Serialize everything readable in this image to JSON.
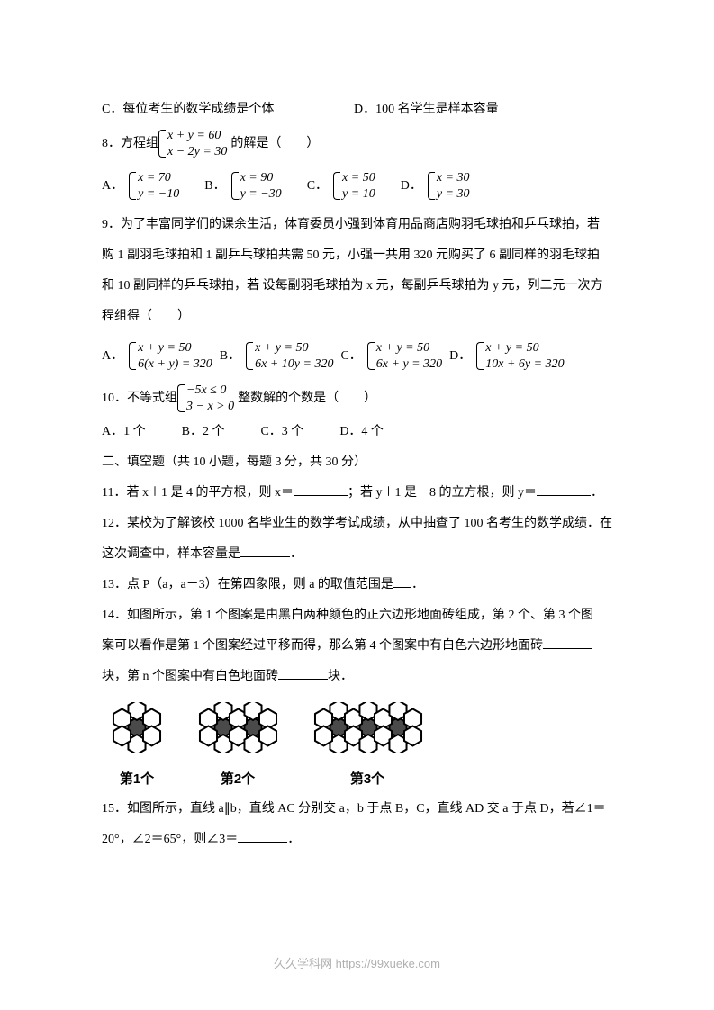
{
  "q7": {
    "c": "C．每位考生的数学成绩是个体",
    "d": "D．100 名学生是样本容量"
  },
  "q8": {
    "stem_pre": "8．方程组",
    "eq1": "x + y = 60",
    "eq2": "x − 2y = 30",
    "stem_post": "的解是（　　）",
    "opts": {
      "a_l": "A．",
      "a1": "x = 70",
      "a2": "y = −10",
      "b_l": "B．",
      "b1": "x = 90",
      "b2": "y = −30",
      "c_l": "C．",
      "c1": "x = 50",
      "c2": "y = 10",
      "d_l": "D．",
      "d1": "x = 30",
      "d2": "y = 30"
    }
  },
  "q9": {
    "p1": "9．为了丰富同学们的课余生活，体育委员小强到体育用品商店购羽毛球拍和乒乓球拍，若",
    "p2": "购 1 副羽毛球拍和 1 副乒乓球拍共需 50 元，小强一共用 320 元购买了 6 副同样的羽毛球拍",
    "p3": "和 10 副同样的乒乓球拍，若 设每副羽毛球拍为 x 元，每副乒乓球拍为 y 元，列二元一次方",
    "p4": "程组得（　　）",
    "opts": {
      "a_l": "A．",
      "a1": "x + y = 50",
      "a2": "6(x + y) = 320",
      "b_l": "B．",
      "b1": "x + y = 50",
      "b2": "6x + 10y = 320",
      "c_l": "C．",
      "c1": "x + y = 50",
      "c2": "6x + y = 320",
      "d_l": "D．",
      "d1": "x + y = 50",
      "d2": "10x + 6y = 320"
    }
  },
  "q10": {
    "stem_pre": "10．不等式组",
    "eq1": "−5x ≤ 0",
    "eq2": "3 − x > 0",
    "stem_post": "整数解的个数是（　　）",
    "a": "A．1 个",
    "b": "B．2 个",
    "c": "C．3 个",
    "d": "D．4 个"
  },
  "section2": "二、填空题（共 10 小题，每题 3 分，共 30 分）",
  "q11": {
    "a": "11．若 x＋1 是 4 的平方根，则 x＝",
    "b": "；若 y＋1 是－8 的立方根，则 y＝",
    "c": "．"
  },
  "q12": {
    "a": "12．某校为了解该校 1000 名毕业生的数学考试成绩，从中抽查了 100 名考生的数学成绩．在",
    "b": "这次调查中，样本容量是",
    "c": "．"
  },
  "q13": {
    "a": "13．点 P（a，a－3）在第四象限，则 a 的取值范围是",
    "b": "．"
  },
  "q14": {
    "a": "14．如图所示，第 1 个图案是由黑白两种颜色的正六边形地面砖组成，第 2 个、第 3 个图",
    "b": "案可以看作是第 1 个图案经过平移而得，那么第 4 个图案中有白色六边形地面砖",
    "c": "块，第 n 个图案中有白色地面砖",
    "d": "块．"
  },
  "hex_labels": {
    "l1": "第1个",
    "l2": "第2个",
    "l3": "第3个"
  },
  "q15": {
    "a": "15．如图所示，直线 a∥b，直线 AC 分别交 a，b 于点 B，C，直线 AD 交 a 于点 D，若∠1＝",
    "b": "20°，∠2＝65°，则∠3＝",
    "c": "．"
  },
  "footer": "久久学科网 https://99xueke.com",
  "svg": {
    "hex_stroke": "#000000",
    "hex_fill_white": "#ffffff",
    "hex_fill_black": "#4a4a4a"
  }
}
